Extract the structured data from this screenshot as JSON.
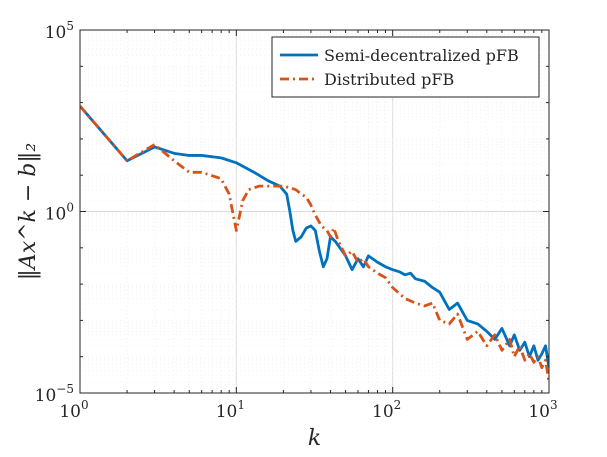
{
  "chart_data": {
    "type": "line",
    "xscale": "log",
    "yscale": "log",
    "xlim": [
      1,
      1000
    ],
    "ylim": [
      1e-05,
      100000
    ],
    "grid": true,
    "legend_position": "top-right",
    "xlabel": "k",
    "ylabel": "‖Ax^k − b‖₂",
    "x_ticks": [
      {
        "base": "10",
        "exp": "0"
      },
      {
        "base": "10",
        "exp": "1"
      },
      {
        "base": "10",
        "exp": "2"
      },
      {
        "base": "10",
        "exp": "3"
      }
    ],
    "y_ticks": [
      {
        "base": "10",
        "exp": "−5"
      },
      {
        "base": "10",
        "exp": "0"
      },
      {
        "base": "10",
        "exp": "5"
      }
    ],
    "series": [
      {
        "name": "Semi-decentralized pFB",
        "color": "#0072BD",
        "style": "solid",
        "x": [
          1,
          2,
          3,
          4,
          5,
          6,
          8,
          10,
          13,
          16,
          19,
          21,
          22,
          23,
          24,
          26,
          28,
          30,
          32,
          34,
          36,
          38,
          40,
          43,
          46,
          50,
          55,
          60,
          65,
          70,
          80,
          90,
          100,
          110,
          120,
          130,
          140,
          160,
          180,
          200,
          230,
          260,
          300,
          350,
          400,
          450,
          500,
          560,
          600,
          650,
          700,
          750,
          800,
          850,
          900,
          950,
          1000
        ],
        "y": [
          800,
          25,
          60,
          40,
          35,
          35,
          30,
          22,
          12,
          7,
          5,
          3,
          1,
          0.3,
          0.15,
          0.2,
          0.35,
          0.4,
          0.3,
          0.08,
          0.03,
          0.05,
          0.2,
          0.15,
          0.1,
          0.06,
          0.025,
          0.05,
          0.03,
          0.06,
          0.04,
          0.03,
          0.025,
          0.022,
          0.018,
          0.02,
          0.014,
          0.012,
          0.008,
          0.006,
          0.002,
          0.003,
          0.001,
          0.0008,
          0.0005,
          0.0003,
          0.0006,
          0.0002,
          0.0004,
          0.00015,
          0.00025,
          0.0001,
          0.0002,
          8e-05,
          0.00012,
          0.0002,
          5e-05
        ]
      },
      {
        "name": "Distributed pFB",
        "color": "#D95319",
        "style": "dashdot",
        "x": [
          1,
          2,
          3,
          4,
          5,
          6,
          8,
          9,
          10,
          11,
          12,
          14,
          16,
          18,
          20,
          22,
          24,
          26,
          28,
          30,
          32,
          35,
          38,
          40,
          42,
          45,
          50,
          55,
          60,
          65,
          70,
          80,
          90,
          100,
          120,
          140,
          160,
          180,
          200,
          230,
          260,
          300,
          350,
          400,
          450,
          500,
          560,
          600,
          650,
          700,
          750,
          800,
          850,
          900,
          950,
          1000
        ],
        "y": [
          800,
          25,
          70,
          25,
          12,
          12,
          8,
          3,
          0.3,
          2,
          4,
          5,
          5,
          5,
          5,
          4.5,
          4,
          3,
          2.5,
          1.5,
          0.8,
          0.4,
          0.3,
          0.2,
          0.35,
          0.15,
          0.06,
          0.08,
          0.04,
          0.05,
          0.03,
          0.02,
          0.015,
          0.008,
          0.004,
          0.003,
          0.0025,
          0.003,
          0.001,
          0.0008,
          0.0015,
          0.0003,
          0.0005,
          0.0002,
          0.0004,
          0.00015,
          0.0003,
          0.0001,
          0.0002,
          8e-05,
          0.00012,
          7e-05,
          0.0001,
          5e-05,
          8e-05,
          2e-05
        ]
      }
    ]
  }
}
